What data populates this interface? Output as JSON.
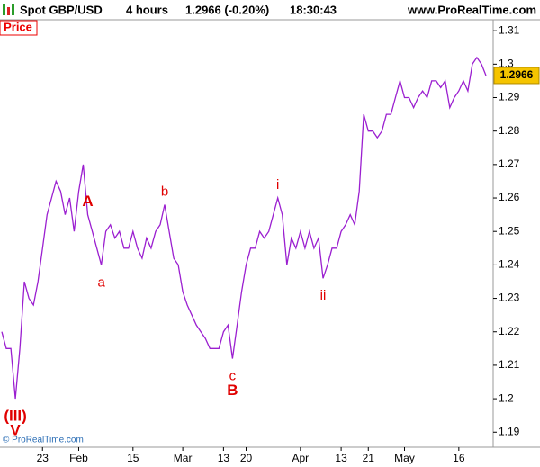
{
  "chart_data": {
    "type": "line",
    "title": "Spot GBP/USD",
    "interval": "4 hours",
    "quote": "1.2966 (-0.20%)",
    "time": "18:30:43",
    "source": "www.ProRealTime.com",
    "panel_label": "Price",
    "copyright": "© ProRealTime.com",
    "color": "#9b1fd0",
    "values": [
      1.22,
      1.215,
      1.215,
      1.2,
      1.215,
      1.235,
      1.23,
      1.228,
      1.235,
      1.245,
      1.255,
      1.26,
      1.265,
      1.262,
      1.255,
      1.26,
      1.25,
      1.262,
      1.27,
      1.255,
      1.25,
      1.245,
      1.24,
      1.25,
      1.252,
      1.248,
      1.25,
      1.245,
      1.245,
      1.25,
      1.245,
      1.242,
      1.248,
      1.245,
      1.25,
      1.252,
      1.258,
      1.25,
      1.242,
      1.24,
      1.232,
      1.228,
      1.225,
      1.222,
      1.22,
      1.218,
      1.215,
      1.215,
      1.215,
      1.22,
      1.222,
      1.212,
      1.222,
      1.232,
      1.24,
      1.245,
      1.245,
      1.25,
      1.248,
      1.25,
      1.255,
      1.26,
      1.255,
      1.24,
      1.248,
      1.245,
      1.25,
      1.245,
      1.25,
      1.245,
      1.248,
      1.236,
      1.24,
      1.245,
      1.245,
      1.25,
      1.252,
      1.255,
      1.252,
      1.262,
      1.285,
      1.28,
      1.28,
      1.278,
      1.28,
      1.285,
      1.285,
      1.29,
      1.295,
      1.29,
      1.29,
      1.287,
      1.29,
      1.292,
      1.29,
      1.295,
      1.295,
      1.293,
      1.295,
      1.287,
      1.29,
      1.292,
      1.295,
      1.292,
      1.3,
      1.302,
      1.3,
      1.2966
    ],
    "ylim": [
      1.1855,
      1.313
    ],
    "yticks": [
      1.19,
      1.2,
      1.21,
      1.22,
      1.23,
      1.24,
      1.25,
      1.26,
      1.27,
      1.28,
      1.29,
      1.3,
      1.31
    ],
    "xticks": [
      {
        "value": 9,
        "label": "23"
      },
      {
        "value": 17,
        "label": "Feb"
      },
      {
        "value": 29,
        "label": "15"
      },
      {
        "value": 40,
        "label": "Mar"
      },
      {
        "value": 49,
        "label": "13"
      },
      {
        "value": 54,
        "label": "20"
      },
      {
        "value": 66,
        "label": "Apr"
      },
      {
        "value": 75,
        "label": "13"
      },
      {
        "value": 81,
        "label": "21"
      },
      {
        "value": 89,
        "label": "May"
      },
      {
        "value": 101,
        "label": "16"
      }
    ],
    "annotations": [
      {
        "text": "(III)",
        "at": 3,
        "side": "below",
        "bold": true
      },
      {
        "text": "V",
        "at": 3,
        "side": "below",
        "bold": true
      },
      {
        "text": "A",
        "at": 19,
        "side": "above",
        "bold": true
      },
      {
        "text": "a",
        "at": 22,
        "side": "below",
        "bold": false
      },
      {
        "text": "b",
        "at": 36,
        "side": "above",
        "bold": false
      },
      {
        "text": "c",
        "at": 51,
        "side": "below",
        "bold": false
      },
      {
        "text": "B",
        "at": 51,
        "side": "below",
        "bold": true
      },
      {
        "text": "i",
        "at": 61,
        "side": "above",
        "bold": false
      },
      {
        "text": "ii",
        "at": 71,
        "side": "below",
        "bold": false
      }
    ],
    "annotation_color": "#e00000"
  }
}
